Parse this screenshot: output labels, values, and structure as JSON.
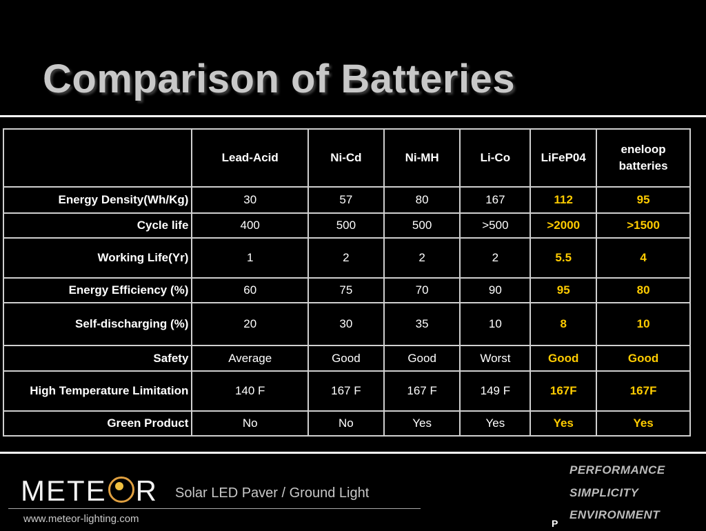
{
  "title": "Comparison of Batteries",
  "table": {
    "headers": [
      "",
      "Lead-Acid",
      "Ni-Cd",
      "Ni-MH",
      "Li-Co",
      "LiFeP04",
      "eneloop batteries"
    ],
    "rows": [
      {
        "label": "Energy Density(Wh/Kg)",
        "values": [
          "30",
          "57",
          "80",
          "167",
          "112",
          "95"
        ]
      },
      {
        "label": "Cycle life",
        "values": [
          "400",
          "500",
          "500",
          ">500",
          ">2000",
          ">1500"
        ]
      },
      {
        "label": "Working Life(Yr)",
        "values": [
          "1",
          "2",
          "2",
          "2",
          "5.5",
          "4"
        ]
      },
      {
        "label": "Energy Efficiency (%)",
        "values": [
          "60",
          "75",
          "70",
          "90",
          "95",
          "80"
        ]
      },
      {
        "label": "Self-discharging (%)",
        "values": [
          "20",
          "30",
          "35",
          "10",
          "8",
          "10"
        ]
      },
      {
        "label": "Safety",
        "values": [
          "Average",
          "Good",
          "Good",
          "Worst",
          "Good",
          "Good"
        ]
      },
      {
        "label": "High Temperature Limitation",
        "values": [
          "140 F",
          "167 F",
          "167 F",
          "149 F",
          "167F",
          "167F"
        ]
      },
      {
        "label": "Green Product",
        "values": [
          "No",
          "No",
          "Yes",
          "Yes",
          "Yes",
          "Yes"
        ]
      }
    ]
  },
  "colors": {
    "highlight": "#ffcc00",
    "title": "#c8c8c8",
    "background": "#000000"
  },
  "footer": {
    "logo_left": "METE",
    "logo_right": "R",
    "tagline": "Solar LED Paver  / Ground Light",
    "website": "www.meteor-lighting.com",
    "slogans": [
      "PERFORMANCE",
      "SIMPLICITY",
      "ENVIRONMENT"
    ],
    "page_mark": "P"
  }
}
